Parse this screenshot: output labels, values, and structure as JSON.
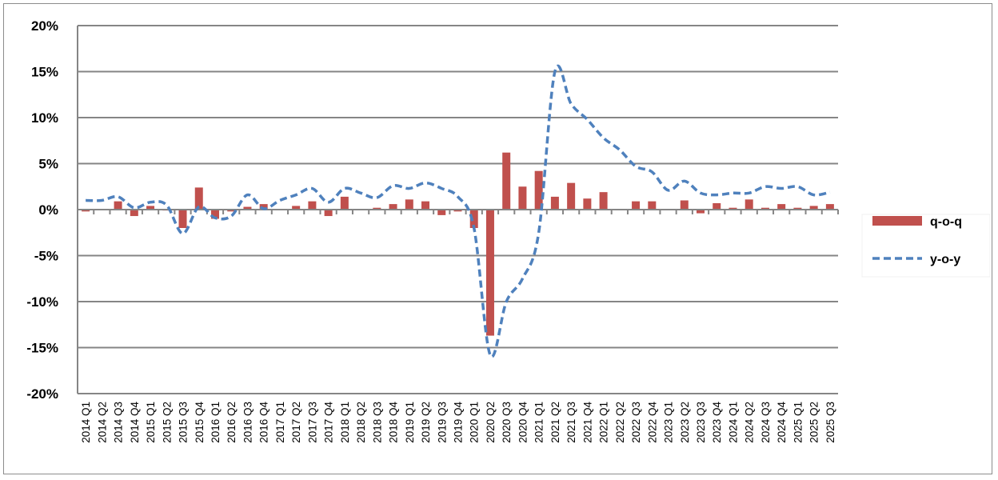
{
  "chart_data": {
    "type": "bar+line",
    "title": "",
    "xlabel": "",
    "ylabel": "",
    "ylim": [
      -20,
      20
    ],
    "yticks": [
      -20,
      -15,
      -10,
      -5,
      0,
      5,
      10,
      15,
      20
    ],
    "ytick_labels": [
      "-20%",
      "-15%",
      "-10%",
      "-5%",
      "0%",
      "5%",
      "10%",
      "15%",
      "20%"
    ],
    "grid": "horizontal",
    "legend_position": "right",
    "categories": [
      "2014 Q1",
      "2014 Q2",
      "2014 Q3",
      "2014 Q4",
      "2015 Q1",
      "2015 Q2",
      "2015 Q3",
      "2015 Q4",
      "2016 Q1",
      "2016 Q2",
      "2016 Q3",
      "2016 Q4",
      "2017 Q1",
      "2017 Q2",
      "2017 Q3",
      "2017 Q4",
      "2018 Q1",
      "2018 Q2",
      "2018 Q3",
      "2018 Q4",
      "2019 Q1",
      "2019 Q2",
      "2019 Q3",
      "2019 Q4",
      "2020 Q1",
      "2020 Q2",
      "2020 Q3",
      "2020 Q4",
      "2021 Q1",
      "2021 Q2",
      "2021 Q3",
      "2021 Q4",
      "2022 Q1",
      "2022 Q2",
      "2022 Q3",
      "2022 Q4",
      "2023 Q1",
      "2023 Q2",
      "2023 Q3",
      "2023 Q4",
      "2024 Q1",
      "2024 Q2",
      "2024 Q3",
      "2024 Q4",
      "2025 Q1",
      "2025 Q2",
      "2025 Q3"
    ],
    "series": [
      {
        "name": "q-o-q",
        "type": "bar",
        "color": "#c0504d",
        "values": [
          -0.2,
          0,
          0.9,
          -0.7,
          0.4,
          -0.1,
          -2.0,
          2.4,
          -1.0,
          -0.2,
          0.3,
          0.6,
          0,
          0.4,
          0.9,
          -0.7,
          1.4,
          0,
          0.2,
          0.6,
          1.1,
          0.9,
          -0.6,
          -0.2,
          -2.0,
          -13.7,
          6.2,
          2.5,
          4.2,
          1.4,
          2.9,
          1.2,
          1.9,
          0,
          0.9,
          0.9,
          0,
          1.0,
          -0.4,
          0.7,
          0.2,
          1.1,
          0.2,
          0.6,
          0.2,
          0.4,
          0.6
        ]
      },
      {
        "name": "y-o-y",
        "type": "line",
        "style": "dashed",
        "color": "#4f81bd",
        "values": [
          1.0,
          1.0,
          1.4,
          0.2,
          0.8,
          0.5,
          -2.6,
          0.3,
          -0.9,
          -0.7,
          1.6,
          0.1,
          1.0,
          1.6,
          2.3,
          0.8,
          2.3,
          1.8,
          1.3,
          2.6,
          2.3,
          2.9,
          2.3,
          1.4,
          -2.0,
          -15.8,
          -10.0,
          -7.5,
          -2.5,
          15.0,
          11.5,
          9.8,
          7.8,
          6.5,
          4.7,
          4.1,
          2.1,
          3.1,
          1.8,
          1.6,
          1.8,
          1.8,
          2.5,
          2.3,
          2.5,
          1.6,
          1.9
        ]
      }
    ]
  }
}
